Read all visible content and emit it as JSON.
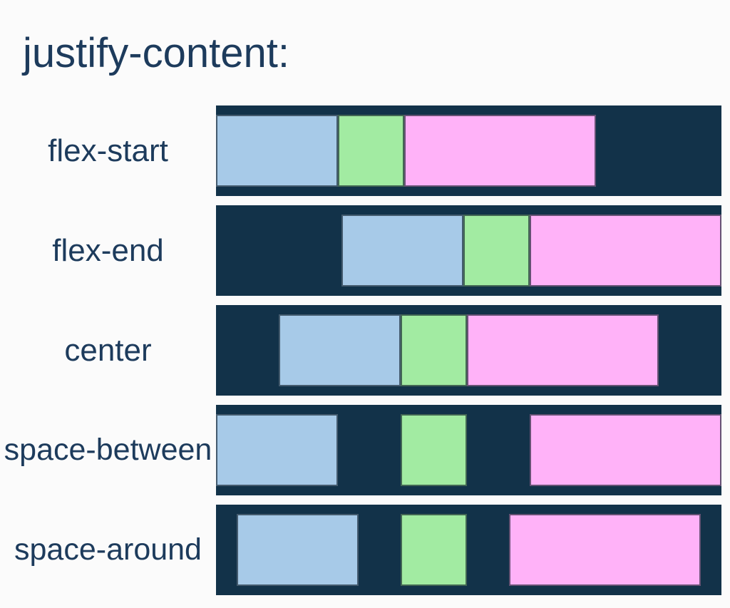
{
  "title": "justify-content:",
  "background": "#fbfbfb",
  "text_color": "#1d3b5c",
  "container_color": "#123249",
  "items": [
    {
      "name": "item-blue",
      "color": "#a7cae8"
    },
    {
      "name": "item-green",
      "color": "#a2eba2"
    },
    {
      "name": "item-pink",
      "color": "#ffb2f8"
    }
  ],
  "rows": [
    {
      "label": "flex-start",
      "justify": "flex-start"
    },
    {
      "label": "flex-end",
      "justify": "flex-end"
    },
    {
      "label": "center",
      "justify": "center"
    },
    {
      "label": "space-between",
      "justify": "space-between"
    },
    {
      "label": "space-around",
      "justify": "space-around"
    }
  ]
}
